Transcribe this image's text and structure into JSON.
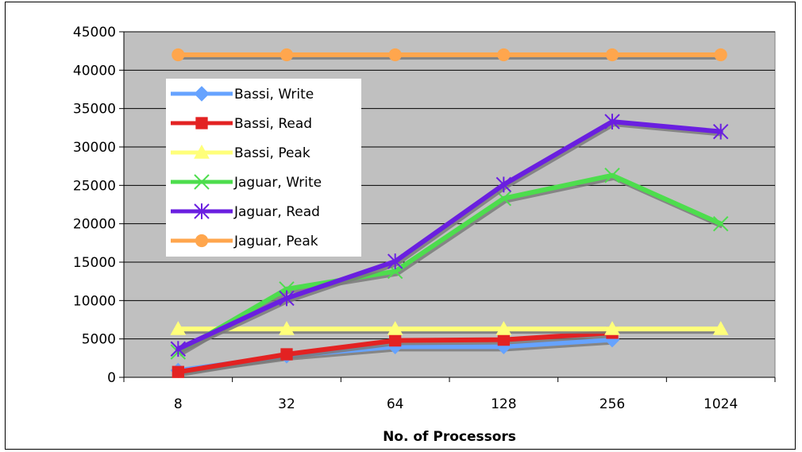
{
  "chart_data": {
    "type": "line",
    "title": "",
    "xlabel": "No. of Processors",
    "ylabel": "",
    "categories": [
      "8",
      "32",
      "64",
      "128",
      "256",
      "1024"
    ],
    "ylim": [
      0,
      45000
    ],
    "yticks": [
      0,
      5000,
      10000,
      15000,
      20000,
      25000,
      30000,
      35000,
      40000,
      45000
    ],
    "grid": "horizontal",
    "plot_background": "#c0c0c0",
    "legend_position": "upper-left inside plot",
    "series": [
      {
        "name": "Bassi, Write",
        "color": "#66a3ff",
        "marker": "diamond",
        "values": [
          900,
          2800,
          4000,
          4000,
          4900,
          null
        ]
      },
      {
        "name": "Bassi, Read",
        "color": "#e32222",
        "marker": "square",
        "values": [
          700,
          3000,
          4800,
          4900,
          5800,
          null
        ]
      },
      {
        "name": "Bassi, Peak",
        "color": "#ffff7a",
        "marker": "triangle",
        "values": [
          6300,
          6300,
          6300,
          6300,
          6300,
          6300
        ]
      },
      {
        "name": "Jaguar, Write",
        "color": "#4ddd4d",
        "marker": "x",
        "values": [
          3300,
          11500,
          13800,
          23300,
          26300,
          20000
        ]
      },
      {
        "name": "Jaguar, Read",
        "color": "#6a1fe0",
        "marker": "star",
        "values": [
          3700,
          10300,
          15100,
          25100,
          33300,
          32000
        ]
      },
      {
        "name": "Jaguar, Peak",
        "color": "#ffa64d",
        "marker": "circle",
        "values": [
          42000,
          42000,
          42000,
          42000,
          42000,
          42000
        ]
      }
    ]
  }
}
